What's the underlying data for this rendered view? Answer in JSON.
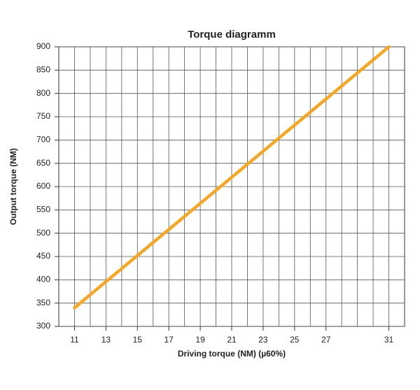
{
  "chart_data": {
    "type": "line",
    "title": "Torque diagramm",
    "x_label": "Driving torque (NM) (µ60%)",
    "y_label": "Output torque  (NM)",
    "x": [
      11,
      31
    ],
    "series": [
      {
        "name": "Output torque",
        "color": "#f5a623",
        "values": [
          340,
          900
        ]
      }
    ],
    "xlim": [
      10,
      32
    ],
    "xticks": [
      11,
      13,
      15,
      17,
      19,
      21,
      23,
      25,
      27,
      31
    ],
    "ylim": [
      300,
      900
    ],
    "yticks": [
      300,
      350,
      400,
      450,
      500,
      550,
      600,
      650,
      700,
      750,
      800,
      850,
      900
    ],
    "grid": true
  }
}
